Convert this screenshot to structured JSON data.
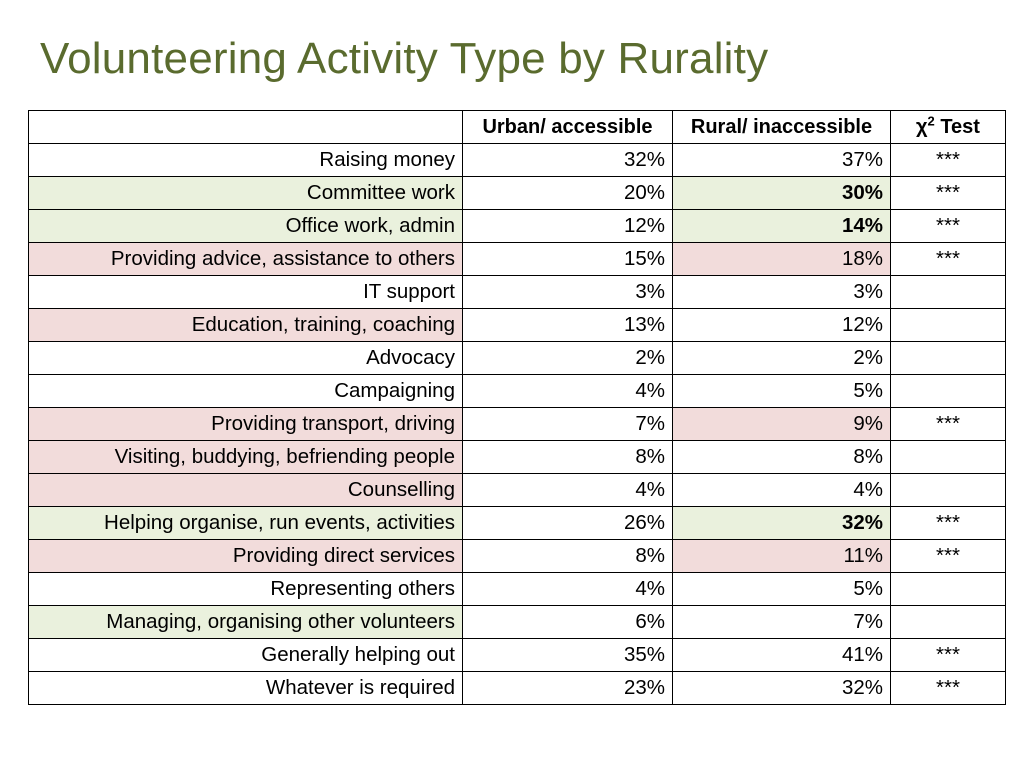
{
  "title": "Volunteering Activity Type by Rurality",
  "colors": {
    "title": "#5a6b2e",
    "green_highlight": "#eaf1dd",
    "red_highlight": "#f2dcdb"
  },
  "table": {
    "headers": {
      "label": "",
      "urban": "Urban/ accessible",
      "rural": "Rural/ inaccessible",
      "test_prefix": "χ",
      "test_sup": "2",
      "test_suffix": " Test"
    },
    "rows": [
      {
        "label": "Raising money",
        "urban": "32%",
        "rural": "37%",
        "test": "***",
        "label_bg": "",
        "rural_bg": "",
        "rural_bold": false
      },
      {
        "label": "Committee work",
        "urban": "20%",
        "rural": "30%",
        "test": "***",
        "label_bg": "green",
        "rural_bg": "green",
        "rural_bold": true
      },
      {
        "label": "Office work, admin",
        "urban": "12%",
        "rural": "14%",
        "test": "***",
        "label_bg": "green",
        "rural_bg": "green",
        "rural_bold": true
      },
      {
        "label": "Providing advice, assistance to others",
        "urban": "15%",
        "rural": "18%",
        "test": "***",
        "label_bg": "red",
        "rural_bg": "red",
        "rural_bold": false
      },
      {
        "label": "IT support",
        "urban": "3%",
        "rural": "3%",
        "test": "",
        "label_bg": "",
        "rural_bg": "",
        "rural_bold": false
      },
      {
        "label": "Education, training, coaching",
        "urban": "13%",
        "rural": "12%",
        "test": "",
        "label_bg": "red",
        "rural_bg": "",
        "rural_bold": false
      },
      {
        "label": "Advocacy",
        "urban": "2%",
        "rural": "2%",
        "test": "",
        "label_bg": "",
        "rural_bg": "",
        "rural_bold": false
      },
      {
        "label": "Campaigning",
        "urban": "4%",
        "rural": "5%",
        "test": "",
        "label_bg": "",
        "rural_bg": "",
        "rural_bold": false
      },
      {
        "label": "Providing transport, driving",
        "urban": "7%",
        "rural": "9%",
        "test": "***",
        "label_bg": "red",
        "rural_bg": "red",
        "rural_bold": false
      },
      {
        "label": "Visiting, buddying, befriending people",
        "urban": "8%",
        "rural": "8%",
        "test": "",
        "label_bg": "red",
        "rural_bg": "",
        "rural_bold": false
      },
      {
        "label": "Counselling",
        "urban": "4%",
        "rural": "4%",
        "test": "",
        "label_bg": "red",
        "rural_bg": "",
        "rural_bold": false
      },
      {
        "label": "Helping organise, run events, activities",
        "urban": "26%",
        "rural": "32%",
        "test": "***",
        "label_bg": "green",
        "rural_bg": "green",
        "rural_bold": true
      },
      {
        "label": "Providing direct services",
        "urban": "8%",
        "rural": "11%",
        "test": "***",
        "label_bg": "red",
        "rural_bg": "red",
        "rural_bold": false
      },
      {
        "label": "Representing others",
        "urban": "4%",
        "rural": "5%",
        "test": "",
        "label_bg": "",
        "rural_bg": "",
        "rural_bold": false
      },
      {
        "label": "Managing, organising other volunteers",
        "urban": "6%",
        "rural": "7%",
        "test": "",
        "label_bg": "green",
        "rural_bg": "",
        "rural_bold": false
      },
      {
        "label": "Generally helping out",
        "urban": "35%",
        "rural": "41%",
        "test": "***",
        "label_bg": "",
        "rural_bg": "",
        "rural_bold": false
      },
      {
        "label": "Whatever is required",
        "urban": "23%",
        "rural": "32%",
        "test": "***",
        "label_bg": "",
        "rural_bg": "",
        "rural_bold": false
      }
    ]
  }
}
